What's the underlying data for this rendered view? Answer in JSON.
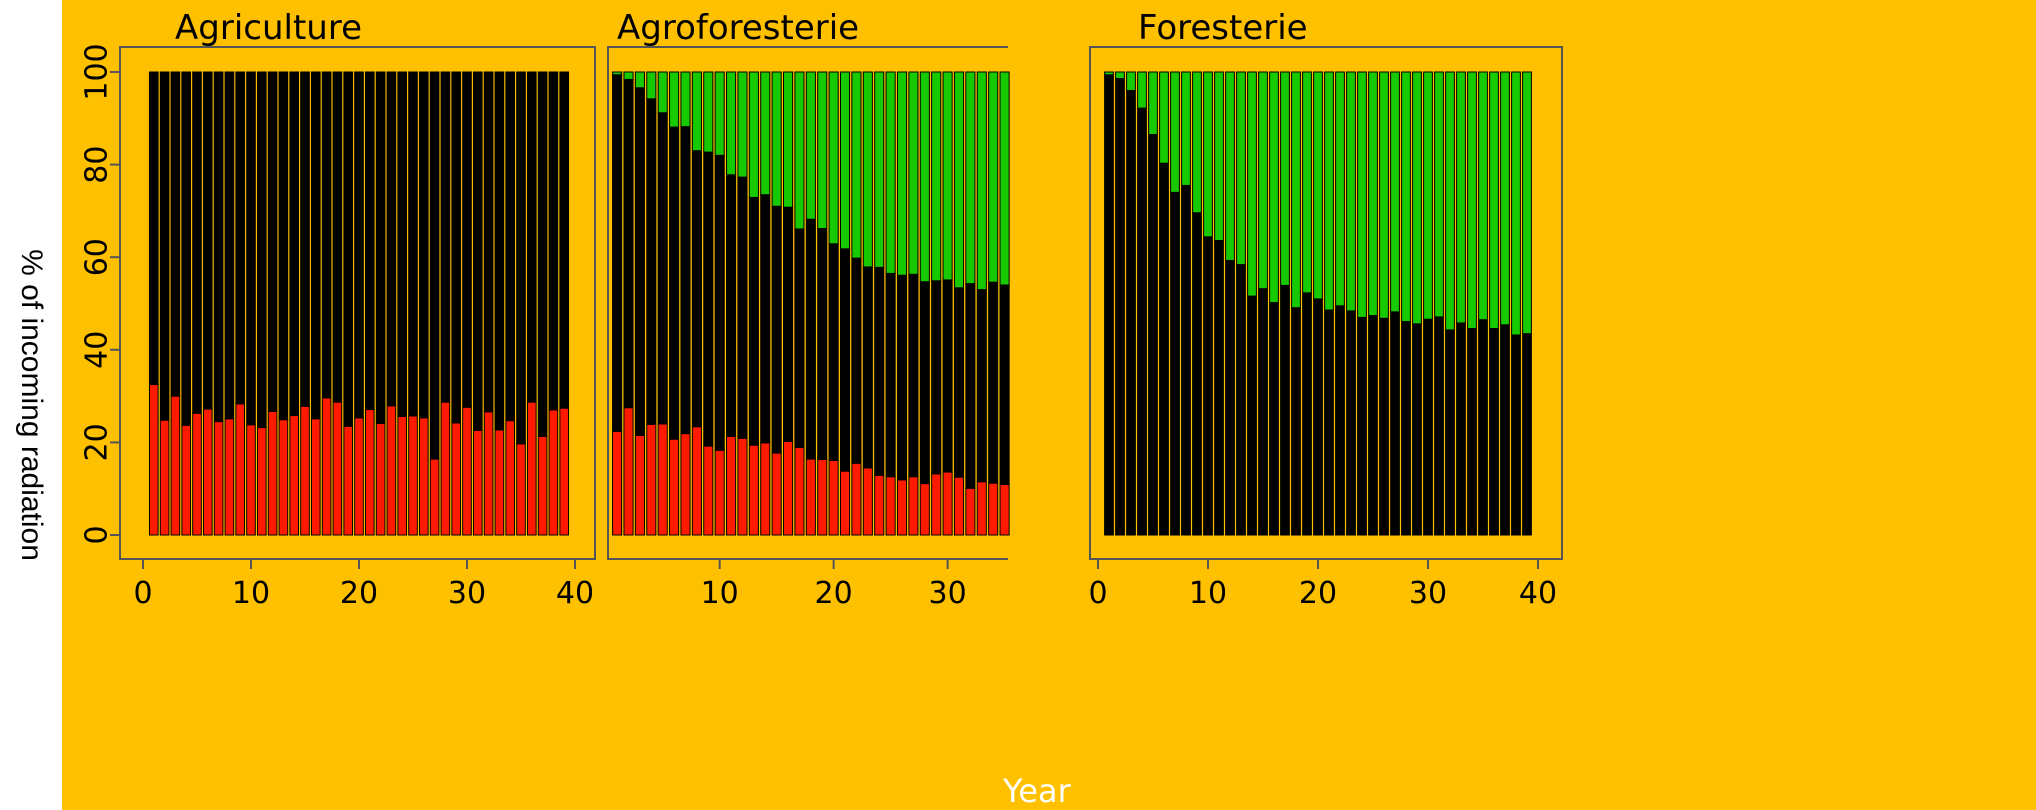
{
  "ylabel": "% of incoming radiation",
  "xlabel": "Year",
  "colors": {
    "background": "#ffc000",
    "red": "#ff1a00",
    "black": "#000000",
    "green": "#17c900",
    "axis": "#555555"
  },
  "chart_data": [
    {
      "type": "bar",
      "title": "Agriculture",
      "x": [
        1,
        2,
        3,
        4,
        5,
        6,
        7,
        8,
        9,
        10,
        11,
        12,
        13,
        14,
        15,
        16,
        17,
        18,
        19,
        20,
        21,
        22,
        23,
        24,
        25,
        26,
        27,
        28,
        29,
        30,
        31,
        32,
        33,
        34,
        35,
        36,
        37,
        38,
        39
      ],
      "series": [
        {
          "values": [
            32.5,
            24.8,
            30,
            23.7,
            26.3,
            27.2,
            24.5,
            25.1,
            28.3,
            23.8,
            23.2,
            26.7,
            24.9,
            25.8,
            27.8,
            25.1,
            29.6,
            28.7,
            23.5,
            25.3,
            27.1,
            24.1,
            27.9,
            25.6,
            25.7,
            25.3,
            16.4,
            28.7,
            24.2,
            27.6,
            22.6,
            26.6,
            22.7,
            24.7,
            19.7,
            28.7,
            21.3,
            27,
            27.4
          ]
        },
        {
          "values": [
            67.5,
            75.2,
            70,
            76.3,
            73.7,
            72.8,
            75.5,
            74.9,
            71.7,
            76.2,
            76.8,
            73.3,
            75.1,
            74.2,
            72.2,
            74.9,
            70.4,
            71.3,
            76.5,
            74.7,
            72.9,
            75.9,
            72.1,
            74.4,
            74.3,
            74.7,
            83.6,
            71.3,
            75.8,
            72.4,
            77.4,
            73.4,
            77.3,
            75.3,
            80.3,
            71.3,
            78.7,
            73,
            72.6
          ]
        },
        {
          "values": [
            0,
            0,
            0,
            0,
            0,
            0,
            0,
            0,
            0,
            0,
            0,
            0,
            0,
            0,
            0,
            0,
            0,
            0,
            0,
            0,
            0,
            0,
            0,
            0,
            0,
            0,
            0,
            0,
            0,
            0,
            0,
            0,
            0,
            0,
            0,
            0,
            0,
            0,
            0
          ]
        }
      ],
      "xlim": [
        0,
        40
      ],
      "ylim": [
        0,
        100
      ],
      "xticks": [
        0,
        10,
        20,
        30,
        40
      ],
      "yticks": [
        0,
        20,
        40,
        60,
        80,
        100
      ]
    },
    {
      "type": "bar",
      "title": "Agroforesterie",
      "x": [
        1,
        2,
        3,
        4,
        5,
        6,
        7,
        8,
        9,
        10,
        11,
        12,
        13,
        14,
        15,
        16,
        17,
        18,
        19,
        20,
        21,
        22,
        23,
        24,
        25,
        26,
        27,
        28,
        29,
        30,
        31,
        32,
        33,
        34,
        35
      ],
      "series": [
        {
          "values": [
            22.4,
            27.5,
            21.5,
            23.9,
            24,
            20.7,
            21.9,
            23.4,
            19.2,
            18.3,
            21.3,
            20.9,
            19.4,
            19.9,
            17.7,
            20.2,
            18.9,
            16.4,
            16.3,
            16.1,
            13.8,
            15.5,
            14.5,
            12.9,
            12.6,
            11.9,
            12.6,
            11.1,
            13.2,
            13.6,
            12.5,
            10.1,
            11.5,
            11.2,
            10.9
          ]
        },
        {
          "values": [
            77,
            70.9,
            75.1,
            70.3,
            67.2,
            67.4,
            66.3,
            59.6,
            63.5,
            63.7,
            56.5,
            56.4,
            53.5,
            53.6,
            53.3,
            50.6,
            47.2,
            51.8,
            49.9,
            46.8,
            48,
            44.3,
            43.4,
            44.9,
            43.9,
            44.2,
            43.7,
            43.6,
            41.7,
            41.5,
            40.9,
            44.2,
            41.5,
            43.4,
            43.1
          ]
        },
        {
          "values": [
            0.6,
            1.6,
            3.4,
            5.8,
            8.8,
            11.9,
            11.8,
            17,
            17.3,
            18,
            22.2,
            22.7,
            27.1,
            26.5,
            29,
            29.2,
            33.9,
            31.8,
            33.8,
            37.1,
            38.2,
            40.2,
            42.1,
            42.2,
            43.5,
            43.9,
            43.7,
            45.3,
            45.1,
            44.9,
            46.6,
            45.7,
            47,
            45.4,
            46
          ]
        }
      ],
      "xlim": [
        0.2,
        35.3
      ],
      "ylim": [
        0,
        100
      ],
      "xticks": [
        10,
        20,
        30
      ],
      "yticks": []
    },
    {
      "type": "bar",
      "title": "Foresterie",
      "x": [
        1,
        2,
        3,
        4,
        5,
        6,
        7,
        8,
        9,
        10,
        11,
        12,
        13,
        14,
        15,
        16,
        17,
        18,
        19,
        20,
        21,
        22,
        23,
        24,
        25,
        26,
        27,
        28,
        29,
        30,
        31,
        32,
        33,
        34,
        35,
        36,
        37,
        38,
        39
      ],
      "series": [
        {
          "values": [
            0,
            0,
            0,
            0,
            0,
            0,
            0,
            0,
            0,
            0,
            0,
            0,
            0,
            0,
            0,
            0,
            0,
            0,
            0,
            0,
            0,
            0,
            0,
            0,
            0,
            0,
            0,
            0,
            0,
            0,
            0,
            0,
            0,
            0,
            0,
            0,
            0,
            0,
            0
          ]
        },
        {
          "values": [
            99.4,
            98.6,
            96,
            92.2,
            86.5,
            80.3,
            74,
            75.5,
            69.6,
            64.4,
            63.6,
            59.3,
            58.4,
            51.6,
            53.2,
            50.2,
            53.9,
            49.1,
            52.3,
            51,
            48.6,
            49.5,
            48.4,
            47,
            47.4,
            46.8,
            48.2,
            46.1,
            45.6,
            46.6,
            47.1,
            44.3,
            45.8,
            44.6,
            46.5,
            44.6,
            45.4,
            43.2,
            43.5
          ]
        },
        {
          "values": [
            0.6,
            1.4,
            4,
            7.8,
            13.5,
            19.7,
            26,
            24.5,
            30.4,
            35.6,
            36.4,
            40.7,
            41.6,
            48.4,
            46.8,
            49.8,
            46.1,
            50.9,
            47.7,
            49,
            51.4,
            50.5,
            51.6,
            53,
            52.6,
            53.2,
            51.8,
            53.9,
            54.4,
            53.4,
            52.9,
            55.7,
            54.2,
            55.4,
            53.5,
            55.4,
            54.6,
            56.8,
            56.5
          ]
        }
      ],
      "xlim": [
        0,
        40
      ],
      "ylim": [
        0,
        100
      ],
      "xticks": [
        0,
        10,
        20,
        30,
        40
      ],
      "yticks": []
    }
  ]
}
